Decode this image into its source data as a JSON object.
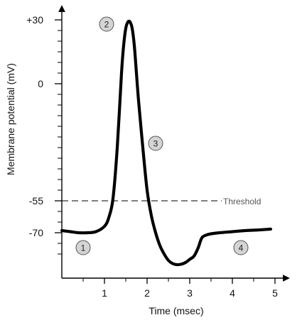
{
  "chart_data": {
    "type": "line",
    "xlabel": "Time (msec)",
    "ylabel": "Membrane potential (mV)",
    "xlim": [
      0,
      5.2
    ],
    "ylim": [
      -90,
      35
    ],
    "x_ticks": [
      {
        "value": 1,
        "label": "1"
      },
      {
        "value": 2,
        "label": "2"
      },
      {
        "value": 3,
        "label": "3"
      },
      {
        "value": 4,
        "label": "4"
      },
      {
        "value": 5,
        "label": "5"
      }
    ],
    "x_minor_ticks": [
      0.5,
      1.5,
      2.5,
      3.5,
      4.5
    ],
    "y_ticks": [
      {
        "value": 30,
        "label": "+30"
      },
      {
        "value": 0,
        "label": "0"
      },
      {
        "value": -55,
        "label": "-55"
      },
      {
        "value": -70,
        "label": "-70"
      }
    ],
    "y_minor_ticks": [
      25,
      20,
      15,
      10,
      5,
      -5,
      -10,
      -15,
      -20,
      -25,
      -30,
      -35,
      -40,
      -45,
      -50,
      -60,
      -65,
      -75,
      -80
    ],
    "series": [
      {
        "color": "#000000",
        "x": [
          0.0,
          0.2,
          0.4,
          0.6,
          0.8,
          1.0,
          1.1,
          1.2,
          1.3,
          1.4,
          1.45,
          1.5,
          1.55,
          1.6,
          1.65,
          1.7,
          1.75,
          1.8,
          1.9,
          2.0,
          2.1,
          2.2,
          2.3,
          2.4,
          2.5,
          2.6,
          2.7,
          2.8,
          2.9,
          3.0,
          3.1,
          3.2,
          3.25,
          3.3,
          3.4,
          3.5,
          3.7,
          4.0,
          4.3,
          4.6,
          4.9
        ],
        "y": [
          -69,
          -69.5,
          -70,
          -70,
          -69.5,
          -67,
          -63,
          -54,
          -30,
          5,
          18,
          26,
          29,
          29,
          26,
          18,
          5,
          -8,
          -30,
          -50,
          -62,
          -70,
          -76,
          -80,
          -83,
          -84.5,
          -85,
          -84.8,
          -84,
          -82.5,
          -81,
          -77,
          -74,
          -72,
          -71,
          -70.5,
          -70,
          -69.5,
          -69,
          -68.7,
          -68.3
        ]
      }
    ],
    "reference_lines": [
      {
        "label": "Threshold",
        "y": -55,
        "x_start": 0,
        "x_end": 3.75,
        "color": "#555555",
        "style": "dashed"
      }
    ],
    "markers": [
      {
        "label": "1",
        "x": 0.5,
        "y": -77
      },
      {
        "label": "2",
        "x": 1.05,
        "y": 28
      },
      {
        "label": "3",
        "x": 2.2,
        "y": -28
      },
      {
        "label": "4",
        "x": 4.2,
        "y": -77
      }
    ],
    "grid": false,
    "legend": "none"
  }
}
